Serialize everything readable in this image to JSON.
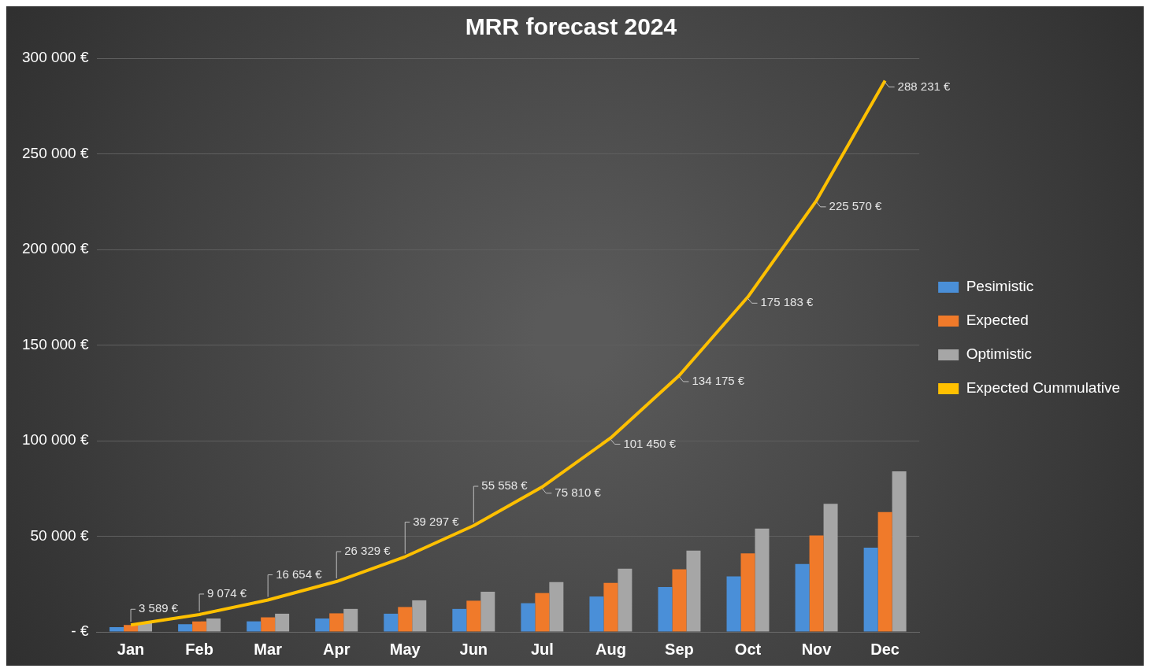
{
  "chart_data": {
    "type": "bar",
    "title": "MRR forecast 2024",
    "categories": [
      "Jan",
      "Feb",
      "Mar",
      "Apr",
      "May",
      "Jun",
      "Jul",
      "Aug",
      "Sep",
      "Oct",
      "Nov",
      "Dec"
    ],
    "series": [
      {
        "name": "Pesimistic",
        "color": "#4a8fd8",
        "values": [
          2500,
          4000,
          5500,
          7000,
          9500,
          12000,
          15000,
          18500,
          23500,
          29000,
          35500,
          44000
        ]
      },
      {
        "name": "Expected",
        "color": "#f07a2a",
        "values": [
          3600,
          5500,
          7600,
          9700,
          13000,
          16300,
          20300,
          25600,
          32700,
          41000,
          50400,
          62700
        ]
      },
      {
        "name": "Optimistic",
        "color": "#a6a6a6",
        "values": [
          4500,
          7000,
          9500,
          12000,
          16500,
          21000,
          26000,
          33000,
          42500,
          54000,
          67000,
          84000
        ]
      },
      {
        "name": "Expected Cummulative",
        "type": "line",
        "color": "#ffc000",
        "values": [
          3589,
          9074,
          16654,
          26329,
          39297,
          55558,
          75810,
          101450,
          134175,
          175183,
          225570,
          288231
        ],
        "value_labels": [
          "3 589 €",
          "9 074 €",
          "16 654 €",
          "26 329 €",
          "39 297 €",
          "55 558 €",
          "75 810 €",
          "101 450 €",
          "134 175 €",
          "175 183 €",
          "225 570 €",
          "288 231 €"
        ]
      }
    ],
    "ylim": [
      0,
      300000
    ],
    "yticks": [
      {
        "value": 0,
        "label": "- €"
      },
      {
        "value": 50000,
        "label": "50 000 €"
      },
      {
        "value": 100000,
        "label": "100 000 €"
      },
      {
        "value": 150000,
        "label": "150 000 €"
      },
      {
        "value": 200000,
        "label": "200 000 €"
      },
      {
        "value": 250000,
        "label": "250 000 €"
      },
      {
        "value": 300000,
        "label": "300 000 €"
      }
    ],
    "grid": "y",
    "legend": "right",
    "marker": "none"
  }
}
